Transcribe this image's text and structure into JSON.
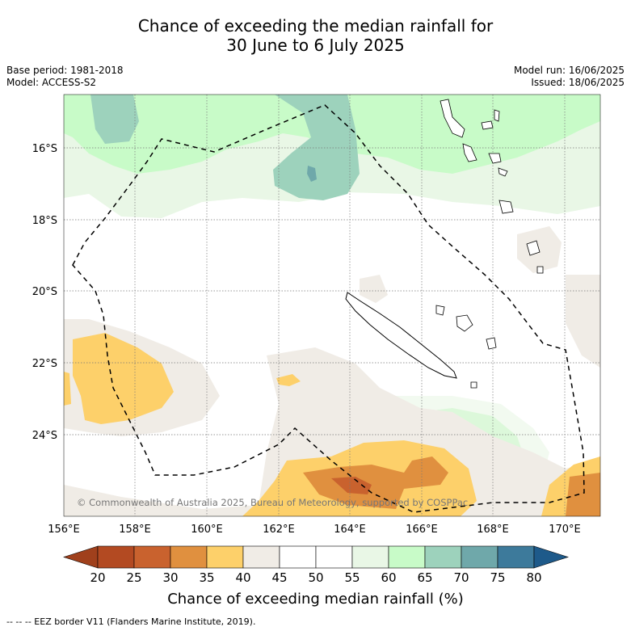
{
  "title_line1": "Chance of exceeding the median rainfall for",
  "title_line2": "30 June to 6 July 2025",
  "base_period": "Base period: 1981-2018",
  "model": "Model: ACCESS-S2",
  "model_run": "Model run: 16/06/2025",
  "issued": "Issued: 18/06/2025",
  "copyright": "© Commonwealth of Australia 2025, Bureau of Meteorology, supported by COSPPac",
  "lat_labels": [
    "16°S",
    "18°S",
    "20°S",
    "22°S",
    "24°S"
  ],
  "lon_labels": [
    "156°E",
    "158°E",
    "160°E",
    "162°E",
    "164°E",
    "166°E",
    "168°E",
    "170°E"
  ],
  "colorbar": {
    "ticks": [
      "20",
      "25",
      "30",
      "35",
      "40",
      "45",
      "50",
      "55",
      "60",
      "65",
      "70",
      "75",
      "80"
    ],
    "colors": [
      "#a0401c",
      "#b34a22",
      "#c9622e",
      "#e0903f",
      "#fdd06a",
      "#f0ece6",
      "#ffffff",
      "#ffffff",
      "#e9f7e6",
      "#c8fbc8",
      "#9dd2bc",
      "#6fa8aa",
      "#3d7a9b",
      "#1e5a8a"
    ],
    "label": "Chance of exceeding median rainfall (%)"
  },
  "legend_footer": "--  --  -- EEZ border V11 (Flanders Marine Institute, 2019)."
}
